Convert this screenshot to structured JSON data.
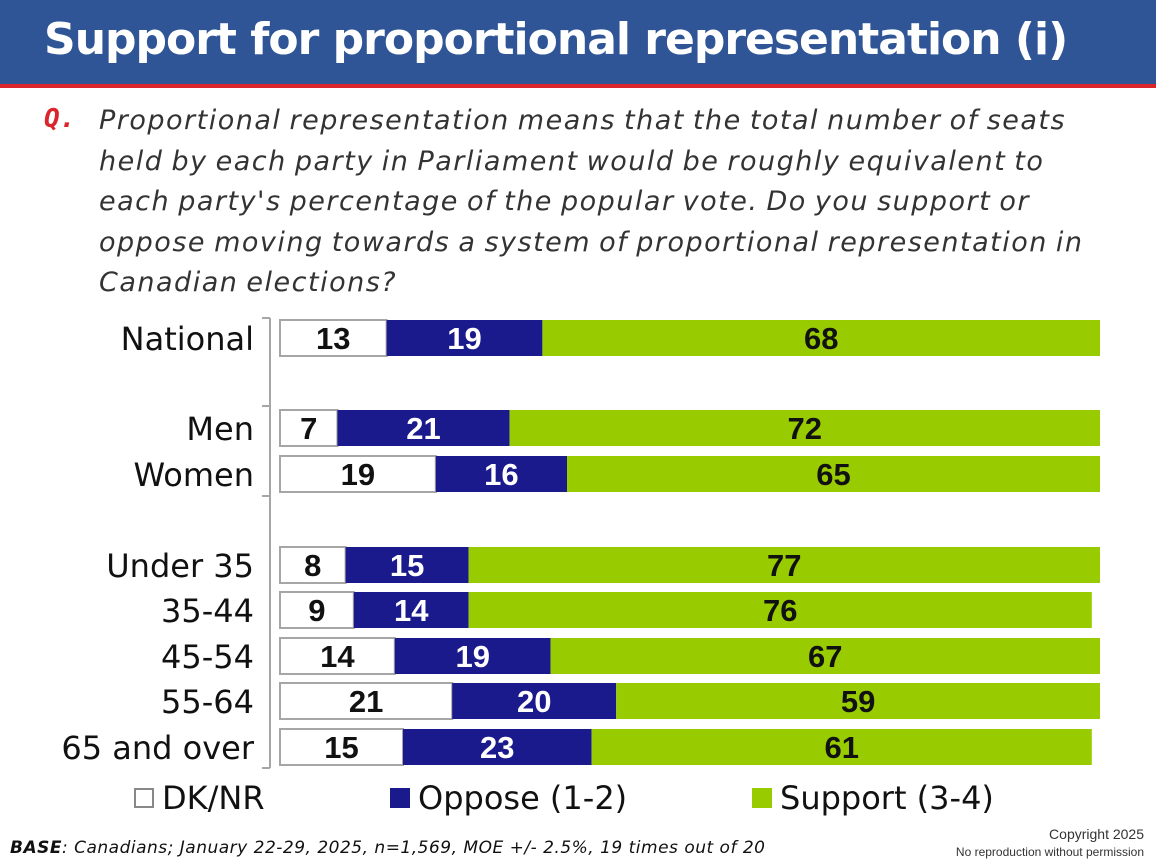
{
  "title": "Support for proportional representation (i)",
  "question": {
    "label": "Q.",
    "text": "Proportional representation means that the total number of seats held by each party in Parliament would be roughly equivalent to each party's percentage of the popular vote. Do you support or oppose moving towards a system of proportional representation in Canadian elections?"
  },
  "chart_data": {
    "type": "bar",
    "orientation": "horizontal",
    "stacked": true,
    "categories": [
      "National",
      "Men",
      "Women",
      "Under 35",
      "35-44",
      "45-54",
      "55-64",
      "65 and over"
    ],
    "series": [
      {
        "name": "DK/NR",
        "values": [
          13,
          7,
          19,
          8,
          9,
          14,
          21,
          15
        ],
        "color": "#ffffff"
      },
      {
        "name": "Oppose (1-2)",
        "values": [
          19,
          21,
          16,
          15,
          14,
          19,
          20,
          23
        ],
        "color": "#1a1a8c"
      },
      {
        "name": "Support (3-4)",
        "values": [
          68,
          72,
          65,
          77,
          76,
          67,
          59,
          61
        ],
        "color": "#99cc00"
      }
    ],
    "xlim": [
      0,
      100
    ],
    "grid": false,
    "legend_position": "bottom"
  },
  "legend": {
    "dk": "DK/NR",
    "oppose": "Oppose (1-2)",
    "support": "Support (3-4)"
  },
  "footer": {
    "base_label": "BASE",
    "base_text": ": Canadians; January 22-29, 2025, n=1,569, MOE +/- 2.5%, 19 times out of 20",
    "copyright": "Copyright 2025",
    "notice": "No reproduction without permission"
  }
}
